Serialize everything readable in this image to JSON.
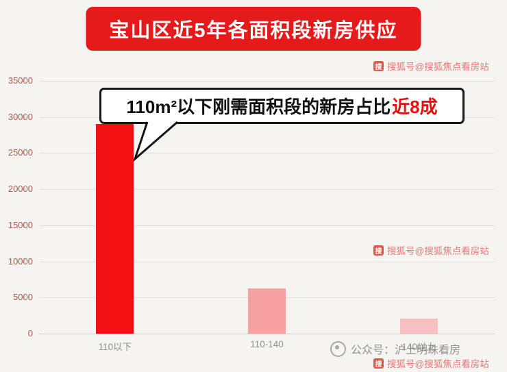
{
  "banner": {
    "title": "宝山区近5年各面积段新房供应"
  },
  "callout": {
    "main": "110m²以下刚需面积段的新房占比",
    "highlight": "近8成"
  },
  "chart_data": {
    "type": "bar",
    "title": "宝山区近5年各面积段新房供应",
    "categories": [
      "110以下",
      "110-140",
      "140以上"
    ],
    "values": [
      29000,
      6300,
      2100
    ],
    "xlabel": "",
    "ylabel": "",
    "ylim": [
      0,
      35000
    ],
    "yticks": [
      35000,
      30000,
      25000,
      20000,
      15000,
      10000,
      5000,
      0
    ],
    "bar_colors": [
      "#f31010",
      "#f7a2a2",
      "#f8c0c0"
    ],
    "grid": true,
    "legend": false,
    "annotation": "110m²以下刚需面积段的新房占比近8成"
  },
  "watermarks": {
    "sohu_icon": "搜",
    "sohu_text": "搜狐号@搜狐焦点看房站",
    "wechat_text": "公众号：沪上明珠看房"
  },
  "colors": {
    "banner_bg": "#e51b1b",
    "highlight_red": "#e60f0f",
    "bar_red": "#f31010",
    "bar_pink": "#f7a2a2",
    "bar_light_pink": "#f8c0c0",
    "ytick_color": "#b0564e"
  }
}
